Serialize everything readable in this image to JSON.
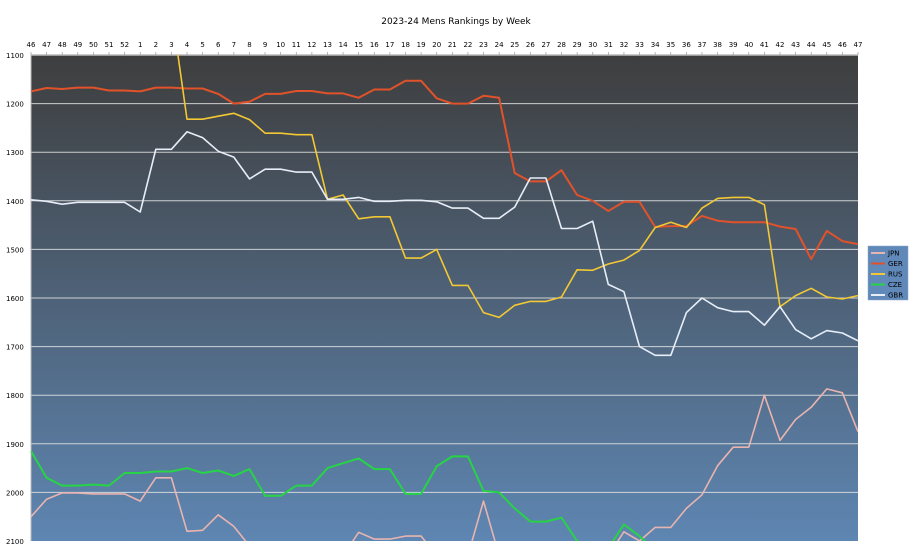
{
  "chart_data": {
    "type": "line",
    "title": "2023-24 Mens Rankings by Week",
    "xlabel": "",
    "ylabel": "",
    "x": [
      "46",
      "47",
      "48",
      "49",
      "50",
      "51",
      "52",
      "1",
      "2",
      "3",
      "4",
      "5",
      "6",
      "7",
      "8",
      "9",
      "10",
      "11",
      "12",
      "13",
      "14",
      "15",
      "16",
      "17",
      "18",
      "19",
      "20",
      "21",
      "22",
      "23",
      "24",
      "25",
      "26",
      "27",
      "28",
      "29",
      "30",
      "31",
      "32",
      "33",
      "34",
      "35",
      "36",
      "37",
      "38",
      "39",
      "40",
      "41",
      "42",
      "43",
      "44",
      "45",
      "46",
      "47"
    ],
    "ylim": [
      1100,
      2100
    ],
    "y_inverted": true,
    "yticks": [
      1100,
      1200,
      1300,
      1400,
      1500,
      1600,
      1700,
      1800,
      1900,
      2000,
      2100
    ],
    "grid": true,
    "legend_position": "right",
    "series": [
      {
        "name": "JPN",
        "color": "#e8b4b0",
        "values": [
          2050,
          2014,
          2001,
          2001,
          2003,
          2003,
          2003,
          2018,
          1970,
          1970,
          2080,
          2078,
          2046,
          2070,
          2110,
          2130,
          2130,
          2130,
          2130,
          2130,
          2130,
          2082,
          2096,
          2096,
          2090,
          2090,
          2130,
          2130,
          2130,
          2018,
          2130,
          2130,
          2130,
          2130,
          2130,
          2130,
          2130,
          2130,
          2081,
          2100,
          2072,
          2072,
          2033,
          2005,
          1945,
          1907,
          1907,
          1800,
          1893,
          1850,
          1825,
          1787,
          1795,
          1875
        ]
      },
      {
        "name": "GER",
        "color": "#e2522a",
        "values": [
          1175,
          1168,
          1170,
          1167,
          1167,
          1173,
          1173,
          1175,
          1167,
          1167,
          1169,
          1169,
          1180,
          1200,
          1196,
          1180,
          1180,
          1174,
          1174,
          1179,
          1179,
          1188,
          1171,
          1171,
          1153,
          1153,
          1189,
          1200,
          1200,
          1184,
          1188,
          1343,
          1360,
          1360,
          1337,
          1388,
          1400,
          1421,
          1402,
          1402,
          1454,
          1452,
          1452,
          1431,
          1441,
          1444,
          1444,
          1444,
          1453,
          1458,
          1520,
          1462,
          1483,
          1489
        ]
      },
      {
        "name": "RUS",
        "color": "#f2c834",
        "values": [
          null,
          null,
          null,
          null,
          null,
          null,
          null,
          null,
          null,
          1005,
          1232,
          1232,
          1226,
          1220,
          1233,
          1261,
          1261,
          1264,
          1264,
          1397,
          1388,
          1437,
          1433,
          1433,
          1518,
          1518,
          1500,
          1574,
          1574,
          1630,
          1640,
          1615,
          1607,
          1607,
          1598,
          1542,
          1543,
          1530,
          1522,
          1502,
          1455,
          1444,
          1455,
          1415,
          1395,
          1393,
          1393,
          1408,
          1618,
          1595,
          1580,
          1598,
          1602,
          1595
        ]
      },
      {
        "name": "CZE",
        "color": "#26d446",
        "values": [
          1915,
          1970,
          1986,
          1986,
          1984,
          1986,
          1960,
          1960,
          1957,
          1957,
          1950,
          1960,
          1955,
          1966,
          1952,
          2007,
          2007,
          1986,
          1986,
          1950,
          1940,
          1930,
          1952,
          1952,
          2003,
          2003,
          1946,
          1926,
          1926,
          1997,
          2000,
          2033,
          2060,
          2060,
          2052,
          2100,
          2115,
          2115,
          2066,
          2090,
          2120,
          null,
          null,
          null,
          null,
          null,
          null,
          null,
          null,
          null,
          null,
          null,
          null,
          null
        ]
      },
      {
        "name": "GBR",
        "color": "#e8eef8",
        "values": [
          1398,
          1401,
          1407,
          1403,
          1403,
          1403,
          1403,
          1423,
          1294,
          1294,
          1258,
          1270,
          1298,
          1310,
          1355,
          1335,
          1335,
          1341,
          1341,
          1397,
          1397,
          1393,
          1401,
          1401,
          1399,
          1399,
          1402,
          1415,
          1415,
          1436,
          1436,
          1413,
          1353,
          1353,
          1457,
          1457,
          1442,
          1572,
          1587,
          1700,
          1718,
          1718,
          1630,
          1600,
          1620,
          1628,
          1628,
          1656,
          1618,
          1665,
          1684,
          1667,
          1672,
          1688
        ]
      }
    ],
    "colors": {
      "background_top": "#3e3e3e",
      "background_bottom": "#5e86b2",
      "gridline": "#e6e6e6",
      "legend_bg": "#6088b8"
    }
  }
}
